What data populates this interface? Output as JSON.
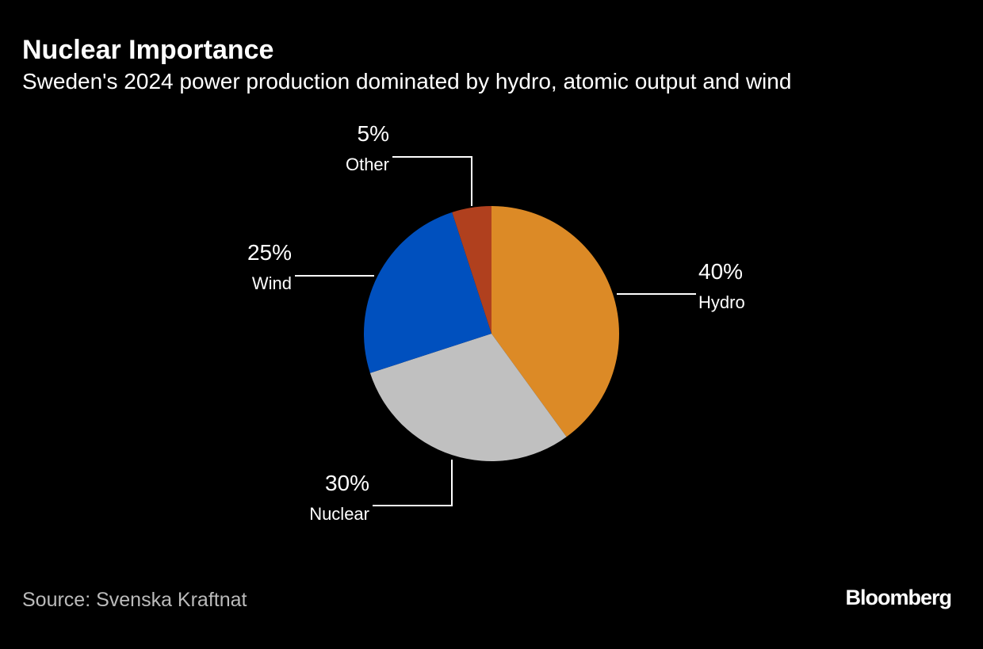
{
  "chart_data": {
    "type": "pie",
    "title": "Nuclear Importance",
    "subtitle": "Sweden's 2024 power production dominated by hydro, atomic output and wind",
    "categories": [
      "Hydro",
      "Nuclear",
      "Wind",
      "Other"
    ],
    "values": [
      40,
      30,
      25,
      5
    ],
    "value_labels": [
      "40%",
      "30%",
      "25%",
      "5%"
    ],
    "colors": [
      "#dc8a26",
      "#c0c0c0",
      "#0050be",
      "#b0401e"
    ],
    "source": "Source: Svenska Kraftnat",
    "brand": "Bloomberg"
  }
}
